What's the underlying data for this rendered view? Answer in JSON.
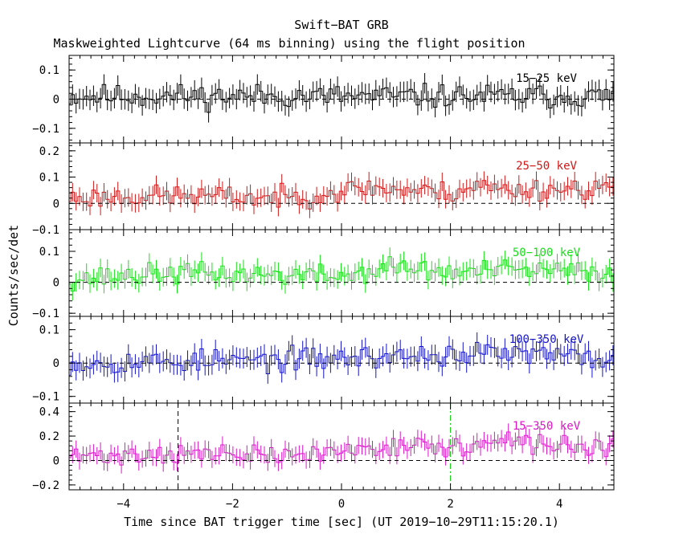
{
  "title": "Swift−BAT GRB",
  "subtitle": "Maskweighted Lightcurve (64 ms binning) using the flight position",
  "ylabel": "Counts/sec/det",
  "xlabel": "Time since BAT trigger time [sec] (UT 2019−10−29T11:15:20.1)",
  "chart_data": {
    "type": "line",
    "step": "histogram",
    "bin_width_s": 0.064,
    "xlim": [
      -5,
      5
    ],
    "x_ticks": [
      -4,
      -2,
      0,
      2,
      4
    ],
    "x_tick_labels": [
      "−4",
      "−2",
      "0",
      "2",
      "4"
    ],
    "markers": [
      {
        "x": -3.0,
        "color": "#000000",
        "style": "dashed",
        "panel": 4
      },
      {
        "x": 2.0,
        "color": "#00cc00",
        "style": "dash-dot",
        "panel": 4
      }
    ],
    "panels": [
      {
        "band": "15−25 keV",
        "color": "#000000",
        "ylim": [
          -0.15,
          0.15
        ],
        "y_ticks": [
          -0.1,
          0,
          0.1
        ],
        "y_tick_labels": [
          "−0.1",
          "0",
          "0.1"
        ],
        "err": 0.035,
        "seed": 11,
        "trend_t": [
          -5,
          5
        ],
        "trend_v": [
          0.01,
          0.01
        ]
      },
      {
        "band": "25−50 keV",
        "color": "#d01818",
        "ylim": [
          -0.1,
          0.23
        ],
        "y_ticks": [
          -0.1,
          0,
          0.1,
          0.2
        ],
        "y_tick_labels": [
          "−0.1",
          "0",
          "0.1",
          "0.2"
        ],
        "err": 0.035,
        "seed": 23,
        "trend_t": [
          -5,
          -3,
          -1,
          0.5,
          2,
          2.5,
          3,
          5
        ],
        "trend_v": [
          0.02,
          0.03,
          0.02,
          0.06,
          0.04,
          0.07,
          0.05,
          0.06
        ]
      },
      {
        "band": "50−100 keV",
        "color": "#18e018",
        "ylim": [
          -0.11,
          0.17
        ],
        "y_ticks": [
          -0.1,
          0,
          0.1
        ],
        "y_tick_labels": [
          "−0.1",
          "0",
          "0.1"
        ],
        "err": 0.03,
        "seed": 37,
        "trend_t": [
          -5,
          -3,
          0,
          1,
          2,
          3,
          5
        ],
        "trend_v": [
          0.01,
          0.03,
          0.02,
          0.05,
          0.03,
          0.04,
          0.03
        ]
      },
      {
        "band": "100−350 keV",
        "color": "#1414c8",
        "ylim": [
          -0.12,
          0.14
        ],
        "y_ticks": [
          -0.1,
          0,
          0.1
        ],
        "y_tick_labels": [
          "−0.1",
          "0",
          "0.1"
        ],
        "err": 0.03,
        "seed": 53,
        "trend_t": [
          -5,
          -1,
          1,
          3,
          5
        ],
        "trend_v": [
          0.0,
          0.01,
          0.02,
          0.03,
          0.01
        ]
      },
      {
        "band": "15−350 keV",
        "color": "#d818c8",
        "ylim": [
          -0.24,
          0.47
        ],
        "y_ticks": [
          -0.2,
          0,
          0.2,
          0.4
        ],
        "y_tick_labels": [
          "−0.2",
          "0",
          "0.2",
          "0.4"
        ],
        "err": 0.07,
        "seed": 71,
        "trend_t": [
          -5,
          -3,
          -1,
          0,
          1,
          2,
          3,
          5
        ],
        "trend_v": [
          0.03,
          0.06,
          0.03,
          0.08,
          0.13,
          0.1,
          0.15,
          0.1
        ]
      }
    ]
  }
}
